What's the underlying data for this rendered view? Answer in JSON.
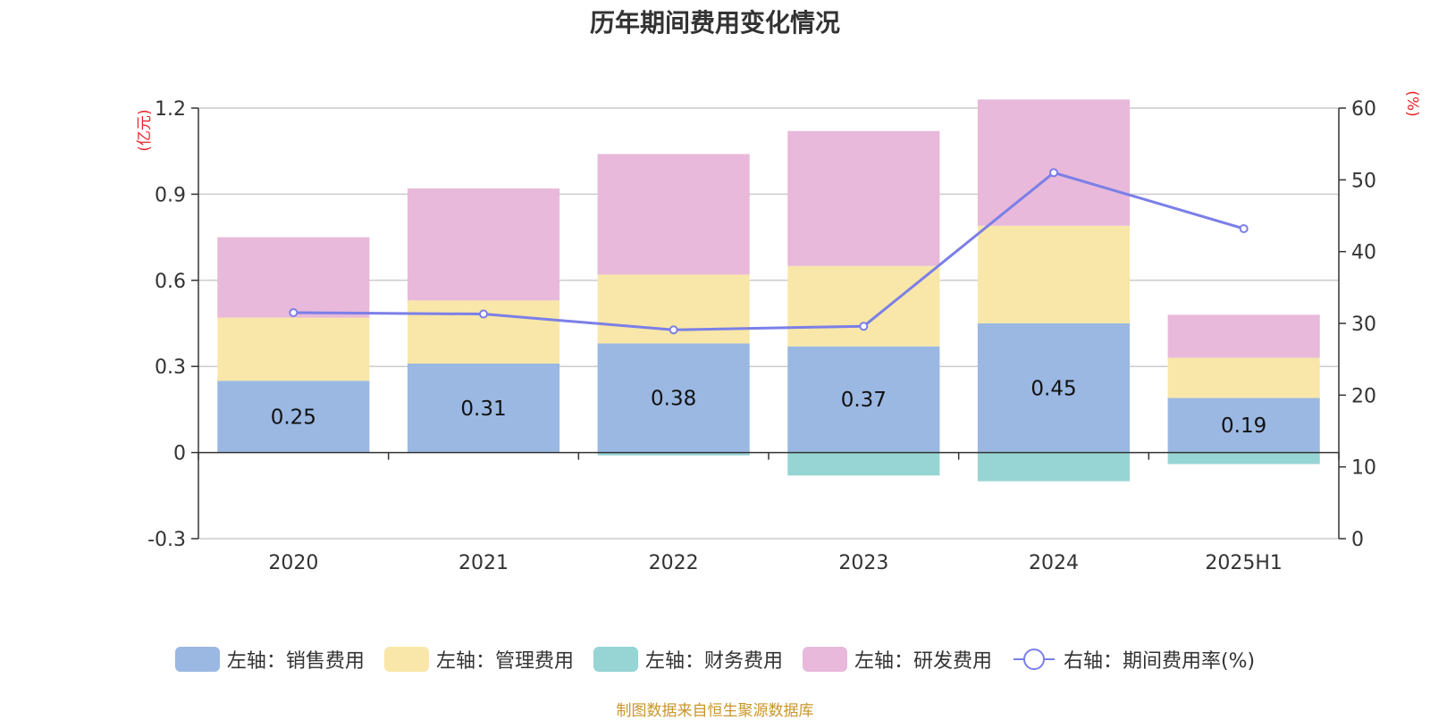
{
  "chart_data": {
    "type": "bar",
    "title": "历年期间费用变化情况",
    "categories": [
      "2020",
      "2021",
      "2022",
      "2023",
      "2024",
      "2025H1"
    ],
    "stacked": true,
    "left_axis": {
      "unit": "(亿元)",
      "ylim": [
        -0.3,
        1.2
      ],
      "ticks": [
        "-0.3",
        "0",
        "0.3",
        "0.6",
        "0.9",
        "1.2"
      ]
    },
    "right_axis": {
      "unit": "(%)",
      "ylim": [
        0,
        60
      ],
      "ticks": [
        "0",
        "10",
        "20",
        "30",
        "40",
        "50",
        "60"
      ]
    },
    "series": [
      {
        "name": "左轴：销售费用",
        "axis": "left",
        "type": "bar",
        "color": "#9bb8e2",
        "values": [
          0.25,
          0.31,
          0.38,
          0.37,
          0.45,
          0.19
        ],
        "labels": [
          "0.25",
          "0.31",
          "0.38",
          "0.37",
          "0.45",
          "0.19"
        ]
      },
      {
        "name": "左轴：管理费用",
        "axis": "left",
        "type": "bar",
        "color": "#f8e7a8",
        "values": [
          0.22,
          0.22,
          0.24,
          0.28,
          0.34,
          0.14
        ]
      },
      {
        "name": "左轴：财务费用",
        "axis": "left",
        "type": "bar",
        "color": "#97d4d4",
        "values": [
          0.0,
          0.0,
          -0.01,
          -0.08,
          -0.1,
          -0.04
        ]
      },
      {
        "name": "左轴：研发费用",
        "axis": "left",
        "type": "bar",
        "color": "#e8b9da",
        "values": [
          0.28,
          0.39,
          0.42,
          0.47,
          0.44,
          0.15
        ]
      },
      {
        "name": "右轴：期间费用率(%)",
        "axis": "right",
        "type": "line",
        "color": "#7b7fe8",
        "values": [
          31.5,
          31.3,
          29.1,
          29.6,
          51.0,
          43.2
        ]
      }
    ],
    "grid": true,
    "legend_position": "bottom"
  },
  "source_note": "制图数据来自恒生聚源数据库"
}
